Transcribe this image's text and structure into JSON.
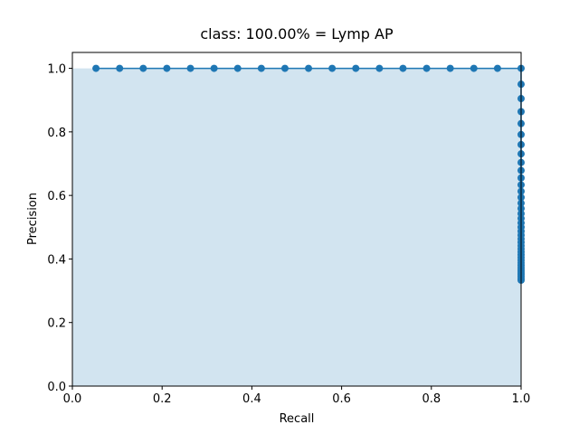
{
  "chart_data": {
    "type": "line",
    "title": "class: 100.00% = Lymp AP",
    "x_label": "Recall",
    "y_label": "Precision",
    "x": [
      0.0526,
      0.1053,
      0.1579,
      0.2105,
      0.2632,
      0.3158,
      0.3684,
      0.4211,
      0.4737,
      0.5263,
      0.5789,
      0.6316,
      0.6842,
      0.7368,
      0.7895,
      0.8421,
      0.8947,
      0.9474,
      1,
      1,
      1,
      1,
      1,
      1,
      1,
      1,
      1,
      1,
      1,
      1,
      1,
      1,
      1,
      1,
      1,
      1,
      1,
      1,
      1,
      1,
      1,
      1,
      1,
      1,
      1,
      1,
      1,
      1,
      1,
      1,
      1,
      1,
      1,
      1,
      1,
      1,
      1
    ],
    "series": [
      {
        "color": "#1f77b4",
        "values": [
          1,
          1,
          1,
          1,
          1,
          1,
          1,
          1,
          1,
          1,
          1,
          1,
          1,
          1,
          1,
          1,
          1,
          1,
          1,
          0.95,
          0.9048,
          0.8636,
          0.8261,
          0.7917,
          0.76,
          0.7308,
          0.7037,
          0.6786,
          0.6552,
          0.6333,
          0.6129,
          0.5938,
          0.5758,
          0.5588,
          0.5429,
          0.5278,
          0.5135,
          0.5,
          0.4872,
          0.475,
          0.4634,
          0.4524,
          0.4419,
          0.4318,
          0.4222,
          0.413,
          0.4043,
          0.3958,
          0.3878,
          0.38,
          0.3725,
          0.3654,
          0.3585,
          0.3519,
          0.3455,
          0.3393,
          0.3333
        ]
      }
    ],
    "xlim": [
      0,
      1.0
    ],
    "ylim": [
      0,
      1.05
    ],
    "xticks": [
      {
        "value": 0,
        "label": "0.0"
      },
      {
        "value": 0.2,
        "label": "0.2"
      },
      {
        "value": 0.4,
        "label": "0.4"
      },
      {
        "value": 0.6,
        "label": "0.6"
      },
      {
        "value": 0.8,
        "label": "0.8"
      },
      {
        "value": 1,
        "label": "1.0"
      }
    ],
    "yticks": [
      {
        "value": 0,
        "label": "0.0"
      },
      {
        "value": 0.2,
        "label": "0.2"
      },
      {
        "value": 0.4,
        "label": "0.4"
      },
      {
        "value": 0.6,
        "label": "0.6"
      },
      {
        "value": 0.8,
        "label": "0.8"
      },
      {
        "value": 1,
        "label": "1.0"
      }
    ],
    "fill": true,
    "grid": false
  }
}
